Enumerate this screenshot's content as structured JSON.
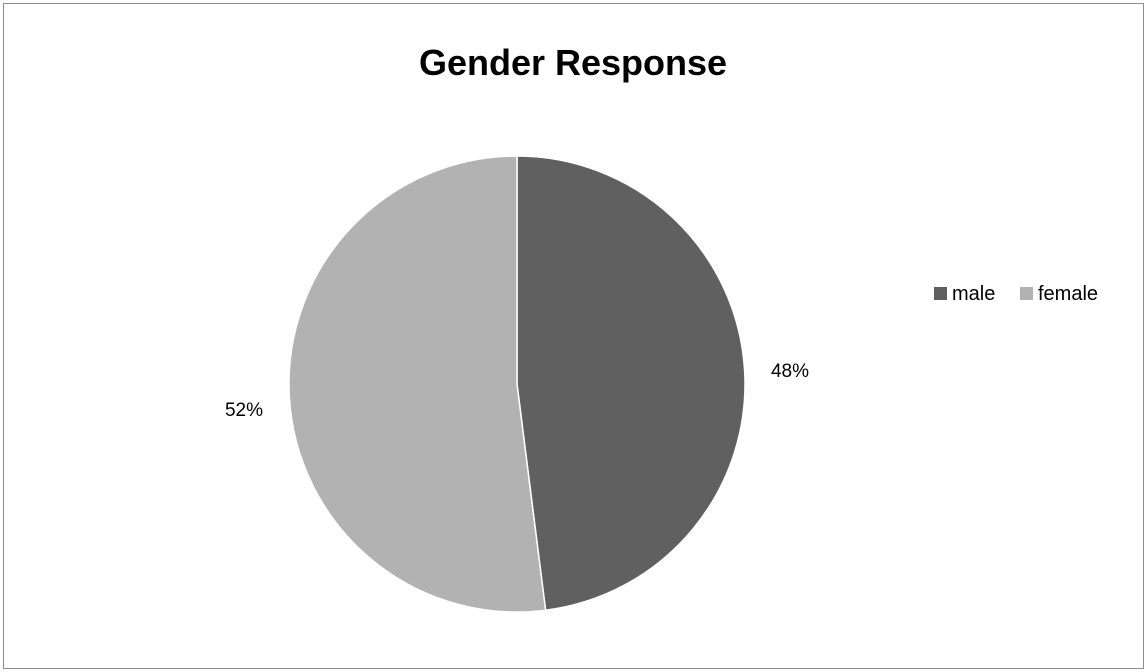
{
  "chart_data": {
    "type": "pie",
    "title": "Gender Response",
    "slices": [
      {
        "name": "male",
        "value": 48,
        "label": "48%",
        "color": "#606060"
      },
      {
        "name": "female",
        "value": 52,
        "label": "52%",
        "color": "#b2b2b2"
      }
    ],
    "legend": {
      "placement": "right",
      "entries": [
        "male",
        "female"
      ]
    },
    "data_labels": "outside"
  }
}
